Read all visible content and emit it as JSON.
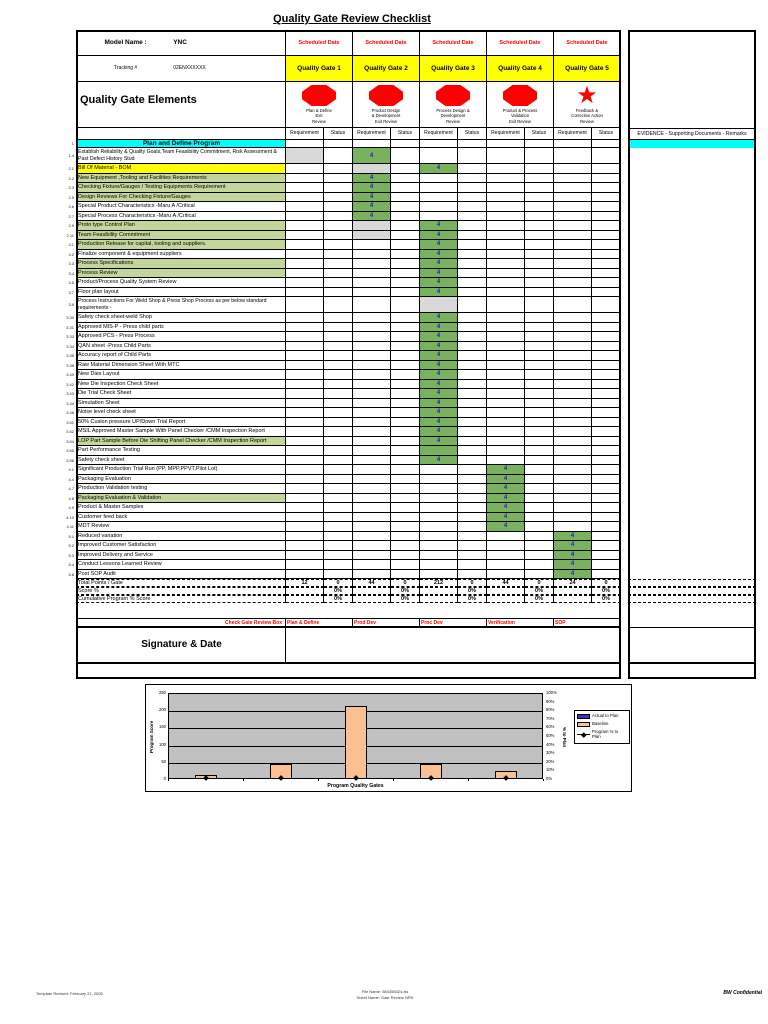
{
  "page_title": "Quality Gate Review Checklist",
  "colors": {
    "cyan": "#00FFFF",
    "yellow": "#FFFF00",
    "olive": "#C4D79B",
    "green": "#79B25D",
    "gray": "#D9D9D9",
    "red": "#FF0000",
    "value_blue": "#2222BB",
    "bar_tan": "#FAC090",
    "plot_gray": "#C0C0C0",
    "legend_blue": "#3333CC"
  },
  "header": {
    "model_name_label": "Model Name :",
    "model_name": "YNC",
    "tracking_label": "Tracking #",
    "tracking_value": "02ENXXXXXX",
    "scheduled_date_label": "Scheduled Date",
    "elements_title": "Quality Gate Elements",
    "requirement_label": "Requirement",
    "status_label": "Status",
    "evidence_label": "EVIDENCE - Supporting Documents - Remarks",
    "gates": [
      {
        "name": "Quality Gate 1",
        "subtitle": "Plan & Define\nExit\nReview",
        "icon": "stop-octagon"
      },
      {
        "name": "Quality Gate 2",
        "subtitle": "Product Design\n& Development\nExit Review",
        "icon": "stop-octagon"
      },
      {
        "name": "Quality Gate 3",
        "subtitle": "Process Design &\nDevelopment\nReview",
        "icon": "stop-octagon"
      },
      {
        "name": "Quality Gate 4",
        "subtitle": "Product & Process\nValidation\nExit Review",
        "icon": "stop-octagon"
      },
      {
        "name": "Quality Gate 5",
        "subtitle": "Feedback &\nCorrective Action\nReview",
        "icon": "star"
      }
    ]
  },
  "section": {
    "num": "1",
    "title": "Plan and Define Program"
  },
  "rows": [
    {
      "num": "1.4",
      "label": "Establish Reliability & Quality Goals,Team Feasibility Commitment, Risk Assessment & Past Defect History Stud",
      "bg": "white",
      "tall": true,
      "cells": {
        "0": "x",
        "2": "4"
      }
    },
    {
      "num": "2.1",
      "label": "Bill Of Material - BOM",
      "bg": "yellow",
      "cells": {
        "2": "x",
        "4": "4"
      }
    },
    {
      "num": "2.2",
      "label": "New Equipment ,Tooling and Facilities Requirements",
      "bg": "olive",
      "cells": {
        "2": "4"
      }
    },
    {
      "num": "2.3",
      "label": "Checking Fixture/Gauges / Testing Equipments Requirement",
      "bg": "olive",
      "cells": {
        "2": "4"
      }
    },
    {
      "num": "2.5",
      "label": "Design Reviews For Checking Fixture/Gauges",
      "bg": "olive",
      "cells": {
        "2": "4"
      }
    },
    {
      "num": "2.6",
      "label": "Special Product Characteristics -Maru A /Critical",
      "bg": "white",
      "cells": {
        "2": "4"
      }
    },
    {
      "num": "2.7",
      "label": "Special  Process Characteristics -Maru A /Critical",
      "bg": "white",
      "cells": {
        "2": "4"
      }
    },
    {
      "num": "2.9",
      "label": "Proto type Control Plan",
      "bg": "olive",
      "cells": {
        "2": "x",
        "4": "4"
      }
    },
    {
      "num": "2.11",
      "label": "Team Feasibility Commitment",
      "bg": "olive",
      "cells": {
        "2": "x",
        "4": "4"
      }
    },
    {
      "num": "3.1",
      "label": "Production Release for capital, tooling and suppliers.",
      "bg": "olive",
      "cells": {
        "4": "4"
      }
    },
    {
      "num": "3.2",
      "label": "Finalize component & equipment suppliers",
      "bg": "white",
      "cells": {
        "4": "4"
      }
    },
    {
      "num": "3.3",
      "label": "Process Specifications",
      "bg": "olive",
      "cells": {
        "4": "4"
      }
    },
    {
      "num": "3.4",
      "label": "Process Review",
      "bg": "olive",
      "cells": {
        "4": "4"
      }
    },
    {
      "num": "3.5",
      "label": "Product/Process Quality System Review",
      "bg": "white",
      "cells": {
        "4": "4"
      }
    },
    {
      "num": "3.7",
      "label": "Floor plan layout",
      "bg": "white",
      "cells": {
        "4": "4"
      }
    },
    {
      "num": "3.9",
      "label": "Process Instructions For Weld Shop & Press Shop Process as per below standard requirements:-",
      "bg": "white",
      "tall": true,
      "cells": {
        "4": "x"
      }
    },
    {
      "num": "3.30",
      "label": "Safety check sheet-weld Shop",
      "bg": "white",
      "cells": {
        "4": "4"
      }
    },
    {
      "num": "3.31",
      "label": "Approved MIS-P - Press child parts",
      "bg": "white",
      "cells": {
        "4": "4"
      }
    },
    {
      "num": "3.33",
      "label": "Approved PCS - Press Process",
      "bg": "white",
      "cells": {
        "4": "4"
      }
    },
    {
      "num": "3.34",
      "label": "QAN sheet -Press Child Parts",
      "bg": "white",
      "cells": {
        "4": "4"
      }
    },
    {
      "num": "3.35",
      "label": "Accuracy report of Child Parts",
      "bg": "white",
      "cells": {
        "4": "4"
      }
    },
    {
      "num": "3.38",
      "label": "Raw Material Dimension Sheet With MTC",
      "bg": "white",
      "cells": {
        "4": "4"
      }
    },
    {
      "num": "3.40",
      "label": "New Dies Layout",
      "bg": "white",
      "cells": {
        "4": "4"
      }
    },
    {
      "num": "3.42",
      "label": "New Die Inspection Check Sheet",
      "bg": "white",
      "cells": {
        "4": "4"
      }
    },
    {
      "num": "3.43",
      "label": "Die Trial Check Sheet",
      "bg": "white",
      "cells": {
        "4": "4"
      }
    },
    {
      "num": "3.44",
      "label": "Simulation Sheet",
      "bg": "white",
      "cells": {
        "4": "4"
      }
    },
    {
      "num": "3.46",
      "label": "Noise level check sheet",
      "bg": "white",
      "cells": {
        "4": "4"
      }
    },
    {
      "num": "3.51",
      "label": "50% Cusion pressure UP/Down Trial Report",
      "bg": "white",
      "cells": {
        "4": "4"
      }
    },
    {
      "num": "3.52",
      "label": "MSIL Approved Master Sample With Panel Checker /CMM Inspection Report",
      "bg": "white",
      "cells": {
        "4": "4"
      }
    },
    {
      "num": "3.54",
      "label": "LOP Part Sample Before Die Shifting Panel Checker /CMM Inspection Report",
      "bg": "olive",
      "cells": {
        "4": "4"
      }
    },
    {
      "num": "3.55",
      "label": "Part Performance Testing",
      "bg": "white",
      "cells": {
        "4": "g"
      }
    },
    {
      "num": "3.56",
      "label": "Safety check sheet",
      "bg": "white",
      "cells": {
        "4": "4"
      }
    },
    {
      "num": "4.1",
      "label": "Significant Production Trial Run (PP, MPP,PPVT,Pilot Lot)",
      "bg": "white",
      "cells": {
        "6": "4"
      }
    },
    {
      "num": "4.4",
      "label": "Packaging Evaluation",
      "bg": "white",
      "cells": {
        "6": "4"
      }
    },
    {
      "num": "4.7",
      "label": "Production Validation testing",
      "bg": "white",
      "cells": {
        "6": "4"
      }
    },
    {
      "num": "4.8",
      "label": "Packaging Evaluation & Validation",
      "bg": "olive",
      "cells": {
        "6": "4"
      }
    },
    {
      "num": "4.9",
      "label": "Product & Master Samples",
      "bg": "white",
      "cells": {
        "6": "4"
      }
    },
    {
      "num": "4.10",
      "label": "Customer feed back",
      "bg": "white",
      "cells": {
        "6": "4"
      }
    },
    {
      "num": "4.11",
      "label": "MDT Review",
      "bg": "white",
      "cells": {
        "6": "4"
      }
    },
    {
      "num": "5.1",
      "label": "Reduced variation",
      "bg": "white",
      "cells": {
        "8": "4"
      }
    },
    {
      "num": "5.2",
      "label": "Improved Customer Satisfaction",
      "bg": "white",
      "cells": {
        "8": "4"
      }
    },
    {
      "num": "5.3",
      "label": "Improved Delivery and Service",
      "bg": "white",
      "cells": {
        "8": "4"
      }
    },
    {
      "num": "5.4",
      "label": "Conduct Lessons Learned Review",
      "bg": "white",
      "cells": {
        "8": "4"
      }
    },
    {
      "num": "5.6",
      "label": "Post SOP Audit",
      "bg": "white",
      "cells": {
        "8": "4"
      }
    }
  ],
  "totals": {
    "total_points": {
      "label": "Total Points / Gate",
      "values": [
        "12",
        "0",
        "44",
        "0",
        "212",
        "0",
        "44",
        "0",
        "24",
        "0"
      ]
    },
    "score_pct": {
      "label": "Score %",
      "values": [
        "",
        "0%",
        "",
        "0%",
        "",
        "0%",
        "",
        "0%",
        "",
        "0%"
      ]
    },
    "cumulative": {
      "label": "Cumulative Program % Score",
      "values": [
        "",
        "0%",
        "",
        "0%",
        "",
        "0%",
        "",
        "0%",
        "",
        "0%"
      ]
    }
  },
  "check_gate": {
    "label": "Check Gate Review Box",
    "entries": [
      "Plan & Define",
      "Prod Dev",
      "Proc Dev",
      "Verification",
      "SOP"
    ]
  },
  "signature_label": "Signature & Date",
  "chart_data": {
    "type": "bar",
    "categories": [
      "Gate 1",
      "Gate 2",
      "Gate 3",
      "Gate 4",
      "Gate 5"
    ],
    "series": [
      {
        "name": "Actual to Plan",
        "type": "bar",
        "color": "#3333CC",
        "values": [
          0,
          0,
          0,
          0,
          0
        ]
      },
      {
        "name": "Baseline",
        "type": "bar",
        "color": "#FAC090",
        "values": [
          12,
          44,
          212,
          44,
          24
        ]
      },
      {
        "name": "Program % to Plan",
        "type": "line",
        "color": "#000000",
        "axis": "right",
        "values": [
          0,
          0,
          0,
          0,
          0
        ]
      }
    ],
    "xlabel": "Program Quality Gates",
    "ylabel_left": "Program Score",
    "ylabel_right": "% to Plan",
    "ylim_left": [
      0,
      250
    ],
    "yticks_left": [
      0,
      50,
      100,
      150,
      200,
      250
    ],
    "ylim_right": [
      0,
      100
    ],
    "yticks_right": [
      "0%",
      "10%",
      "20%",
      "30%",
      "40%",
      "50%",
      "60%",
      "70%",
      "80%",
      "90%",
      "100%"
    ],
    "plot_bg": "#C0C0C0",
    "grid": true,
    "legend_position": "right"
  },
  "footer": {
    "left": "Template Revised: February 21, 2005",
    "file_name": "File Name: 584358324.xls",
    "sheet_name": "Sheet Name: Gate Review NPD",
    "right": "BW Confidential"
  }
}
